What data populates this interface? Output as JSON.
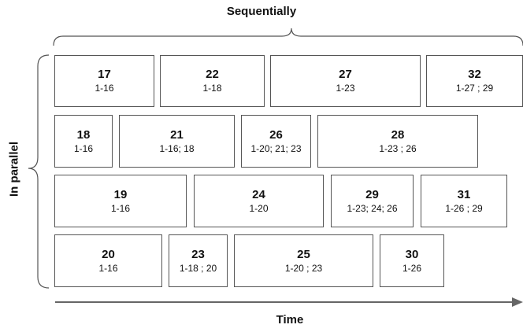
{
  "labels": {
    "sequentially": "Sequentially",
    "in_parallel": "In parallel",
    "time": "Time"
  },
  "tasks": [
    {
      "id": "17",
      "deps": "1-16"
    },
    {
      "id": "22",
      "deps": "1-18"
    },
    {
      "id": "27",
      "deps": "1-23"
    },
    {
      "id": "32",
      "deps": "1-27 ; 29"
    },
    {
      "id": "18",
      "deps": "1-16"
    },
    {
      "id": "21",
      "deps": "1-16; 18"
    },
    {
      "id": "26",
      "deps": "1-20; 21; 23"
    },
    {
      "id": "28",
      "deps": "1-23 ; 26"
    },
    {
      "id": "19",
      "deps": "1-16"
    },
    {
      "id": "24",
      "deps": "1-20"
    },
    {
      "id": "29",
      "deps": "1-23; 24; 26"
    },
    {
      "id": "31",
      "deps": "1-26 ; 29"
    },
    {
      "id": "20",
      "deps": "1-16"
    },
    {
      "id": "23",
      "deps": "1-18 ; 20"
    },
    {
      "id": "25",
      "deps": "1-20 ; 23"
    },
    {
      "id": "30",
      "deps": "1-26"
    }
  ]
}
